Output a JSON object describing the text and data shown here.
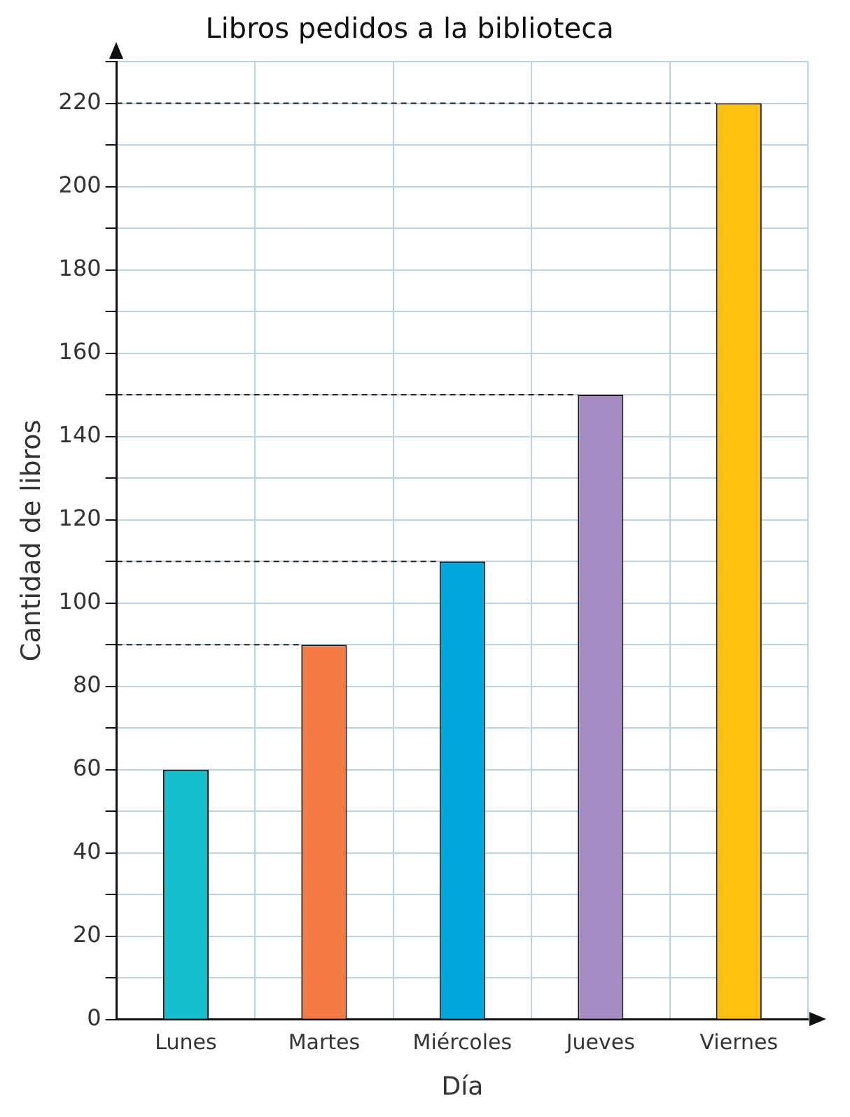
{
  "chart_data": {
    "type": "bar",
    "title": "Libros pedidos a la biblioteca",
    "xlabel": "Día",
    "ylabel": "Cantidad de libros",
    "categories": [
      "Lunes",
      "Martes",
      "Miércoles",
      "Jueves",
      "Viernes"
    ],
    "values": [
      60,
      90,
      110,
      150,
      220
    ],
    "colors": [
      "#17becb",
      "#f47c44",
      "#00a7dc",
      "#a58cc3",
      "#fec10f"
    ],
    "ylim": [
      0,
      230
    ],
    "yticks": [
      0,
      {
        "value": 10,
        "label": null
      },
      20,
      {
        "value": 30,
        "label": null
      },
      40,
      {
        "value": 50,
        "label": null
      },
      60,
      {
        "value": 70,
        "label": null
      },
      80,
      {
        "value": 90,
        "label": null
      },
      100,
      {
        "value": 110,
        "label": null
      },
      120,
      {
        "value": 130,
        "label": null
      },
      140,
      {
        "value": 150,
        "label": null
      },
      160,
      {
        "value": 170,
        "label": null
      },
      180,
      {
        "value": 190,
        "label": null
      },
      200,
      {
        "value": 210,
        "label": null
      },
      220,
      {
        "value": 230,
        "label": null
      }
    ],
    "ref_lines": [
      {
        "axis": "y",
        "value": 90,
        "line_style": "dashed"
      },
      {
        "axis": "y",
        "value": 110,
        "line_style": "dashed"
      },
      {
        "axis": "y",
        "value": 150,
        "line_style": "dashed"
      },
      {
        "axis": "y",
        "value": 220,
        "line_style": "dashed"
      }
    ],
    "grid": true,
    "legend": false
  }
}
